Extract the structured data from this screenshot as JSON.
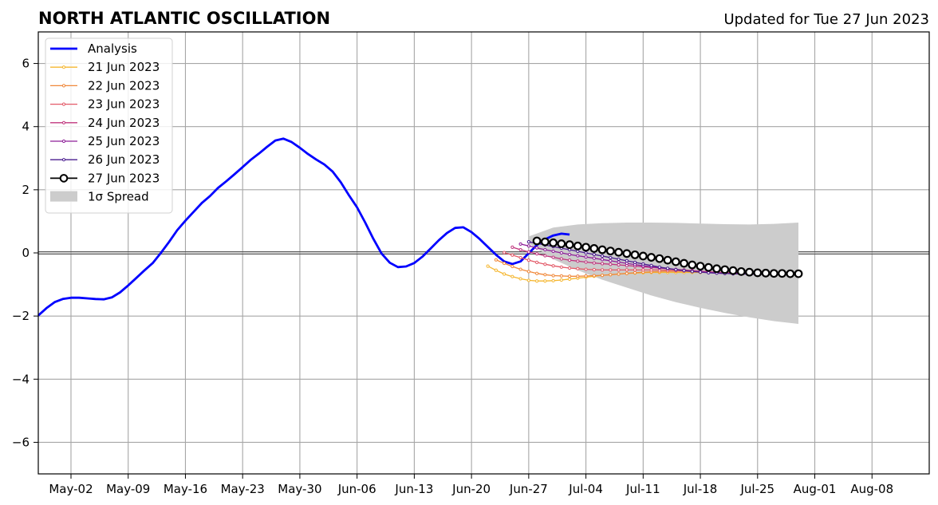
{
  "chart_data": {
    "type": "line",
    "title": "NORTH ATLANTIC OSCILLATION",
    "subtitle": "Updated for Tue 27 Jun 2023",
    "xlabel": "",
    "ylabel": "",
    "x_range": [
      "2023-04-28",
      "2023-08-15"
    ],
    "ylim": [
      -7,
      7
    ],
    "grid": true,
    "legend_position": "top-left",
    "x_ticks": [
      {
        "date": "2023-05-02",
        "label": "May-02"
      },
      {
        "date": "2023-05-09",
        "label": "May-09"
      },
      {
        "date": "2023-05-16",
        "label": "May-16"
      },
      {
        "date": "2023-05-23",
        "label": "May-23"
      },
      {
        "date": "2023-05-30",
        "label": "May-30"
      },
      {
        "date": "2023-06-06",
        "label": "Jun-06"
      },
      {
        "date": "2023-06-13",
        "label": "Jun-13"
      },
      {
        "date": "2023-06-20",
        "label": "Jun-20"
      },
      {
        "date": "2023-06-27",
        "label": "Jun-27"
      },
      {
        "date": "2023-07-04",
        "label": "Jul-04"
      },
      {
        "date": "2023-07-11",
        "label": "Jul-11"
      },
      {
        "date": "2023-07-18",
        "label": "Jul-18"
      },
      {
        "date": "2023-07-25",
        "label": "Jul-25"
      },
      {
        "date": "2023-08-01",
        "label": "Aug-01"
      },
      {
        "date": "2023-08-08",
        "label": "Aug-08"
      }
    ],
    "y_ticks": [
      {
        "value": 6,
        "label": "6"
      },
      {
        "value": 4,
        "label": "4"
      },
      {
        "value": 2,
        "label": "2"
      },
      {
        "value": 0,
        "label": "0"
      },
      {
        "value": -2,
        "label": "−2"
      },
      {
        "value": -4,
        "label": "−4"
      },
      {
        "value": -6,
        "label": "−6"
      }
    ],
    "analysis": {
      "name": "Analysis",
      "color": "#0000ff",
      "start_date": "2023-04-28",
      "values": [
        -1.98,
        -1.75,
        -1.56,
        -1.46,
        -1.42,
        -1.42,
        -1.44,
        -1.46,
        -1.47,
        -1.41,
        -1.25,
        -1.03,
        -0.79,
        -0.55,
        -0.32,
        0.0,
        0.35,
        0.72,
        1.02,
        1.3,
        1.58,
        1.8,
        2.06,
        2.27,
        2.49,
        2.72,
        2.95,
        3.15,
        3.36,
        3.56,
        3.62,
        3.51,
        3.33,
        3.13,
        2.96,
        2.8,
        2.58,
        2.24,
        1.83,
        1.44,
        0.96,
        0.44,
        -0.02,
        -0.31,
        -0.45,
        -0.43,
        -0.32,
        -0.12,
        0.14,
        0.4,
        0.63,
        0.79,
        0.81,
        0.66,
        0.44,
        0.19,
        -0.06,
        -0.27,
        -0.35,
        -0.27,
        -0.01,
        0.25,
        0.43,
        0.55,
        0.61,
        0.58
      ]
    },
    "forecasts": [
      {
        "name": "21 Jun 2023",
        "color": "#f5b731",
        "start_date": "2023-06-22",
        "values": [
          -0.42,
          -0.55,
          -0.67,
          -0.75,
          -0.82,
          -0.87,
          -0.89,
          -0.89,
          -0.88,
          -0.86,
          -0.83,
          -0.8,
          -0.77,
          -0.74,
          -0.71,
          -0.69,
          -0.67,
          -0.65,
          -0.64,
          -0.63,
          -0.62,
          -0.62,
          -0.62,
          -0.62,
          -0.62,
          -0.62,
          -0.62,
          -0.62,
          -0.63,
          -0.63,
          -0.63
        ]
      },
      {
        "name": "22 Jun 2023",
        "color": "#f0883a",
        "start_date": "2023-06-23",
        "values": [
          -0.22,
          -0.33,
          -0.43,
          -0.52,
          -0.59,
          -0.65,
          -0.69,
          -0.72,
          -0.73,
          -0.74,
          -0.74,
          -0.73,
          -0.72,
          -0.71,
          -0.69,
          -0.67,
          -0.65,
          -0.63,
          -0.61,
          -0.6,
          -0.59,
          -0.58,
          -0.58,
          -0.58,
          -0.59,
          -0.6,
          -0.61,
          -0.62,
          -0.63,
          -0.64
        ]
      },
      {
        "name": "23 Jun 2023",
        "color": "#e35a68",
        "start_date": "2023-06-24",
        "values": [
          0.01,
          -0.07,
          -0.15,
          -0.23,
          -0.3,
          -0.36,
          -0.41,
          -0.45,
          -0.48,
          -0.5,
          -0.52,
          -0.53,
          -0.54,
          -0.54,
          -0.54,
          -0.54,
          -0.54,
          -0.54,
          -0.54,
          -0.54,
          -0.55,
          -0.56,
          -0.57,
          -0.58,
          -0.59,
          -0.6,
          -0.61,
          -0.62,
          -0.63,
          -0.64
        ]
      },
      {
        "name": "24 Jun 2023",
        "color": "#c0357e",
        "start_date": "2023-06-25",
        "values": [
          0.18,
          0.1,
          0.03,
          -0.03,
          -0.09,
          -0.14,
          -0.19,
          -0.23,
          -0.26,
          -0.29,
          -0.32,
          -0.34,
          -0.36,
          -0.38,
          -0.4,
          -0.42,
          -0.44,
          -0.46,
          -0.48,
          -0.5,
          -0.52,
          -0.54,
          -0.56,
          -0.58,
          -0.6,
          -0.62,
          -0.64,
          -0.65,
          -0.66,
          -0.67
        ]
      },
      {
        "name": "25 Jun 2023",
        "color": "#8e1f99",
        "start_date": "2023-06-26",
        "values": [
          0.28,
          0.22,
          0.16,
          0.1,
          0.05,
          0.0,
          -0.05,
          -0.09,
          -0.13,
          -0.17,
          -0.21,
          -0.25,
          -0.29,
          -0.33,
          -0.37,
          -0.41,
          -0.44,
          -0.47,
          -0.5,
          -0.53,
          -0.56,
          -0.58,
          -0.6,
          -0.62,
          -0.64,
          -0.65,
          -0.66,
          -0.67,
          -0.67,
          -0.68
        ]
      },
      {
        "name": "26 Jun 2023",
        "color": "#4a1c8f",
        "start_date": "2023-06-27",
        "values": [
          0.35,
          0.3,
          0.25,
          0.2,
          0.15,
          0.1,
          0.05,
          0.0,
          -0.05,
          -0.1,
          -0.15,
          -0.2,
          -0.25,
          -0.3,
          -0.35,
          -0.4,
          -0.45,
          -0.49,
          -0.53,
          -0.56,
          -0.59,
          -0.61,
          -0.63,
          -0.64,
          -0.65,
          -0.66,
          -0.67,
          -0.67,
          -0.68,
          -0.68
        ]
      },
      {
        "name": "27 Jun 2023",
        "color": "#000000",
        "start_date": "2023-06-28",
        "values": [
          0.38,
          0.35,
          0.32,
          0.29,
          0.26,
          0.22,
          0.18,
          0.14,
          0.1,
          0.06,
          0.02,
          -0.02,
          -0.06,
          -0.1,
          -0.14,
          -0.18,
          -0.23,
          -0.28,
          -0.33,
          -0.38,
          -0.42,
          -0.46,
          -0.5,
          -0.53,
          -0.56,
          -0.59,
          -0.61,
          -0.63,
          -0.64,
          -0.65,
          -0.65,
          -0.66,
          -0.66
        ]
      }
    ],
    "spread": {
      "name": "1σ Spread",
      "color": "#cccccc",
      "dates": [
        "2023-06-27",
        "2023-06-30",
        "2023-07-03",
        "2023-07-06",
        "2023-07-09",
        "2023-07-12",
        "2023-07-15",
        "2023-07-18",
        "2023-07-21",
        "2023-07-24",
        "2023-07-27",
        "2023-07-30"
      ],
      "upper": [
        0.52,
        0.8,
        0.9,
        0.94,
        0.96,
        0.96,
        0.95,
        0.93,
        0.91,
        0.9,
        0.92,
        0.96
      ],
      "lower": [
        0.3,
        -0.2,
        -0.55,
        -0.85,
        -1.1,
        -1.35,
        -1.56,
        -1.74,
        -1.9,
        -2.04,
        -2.16,
        -2.25
      ]
    }
  }
}
